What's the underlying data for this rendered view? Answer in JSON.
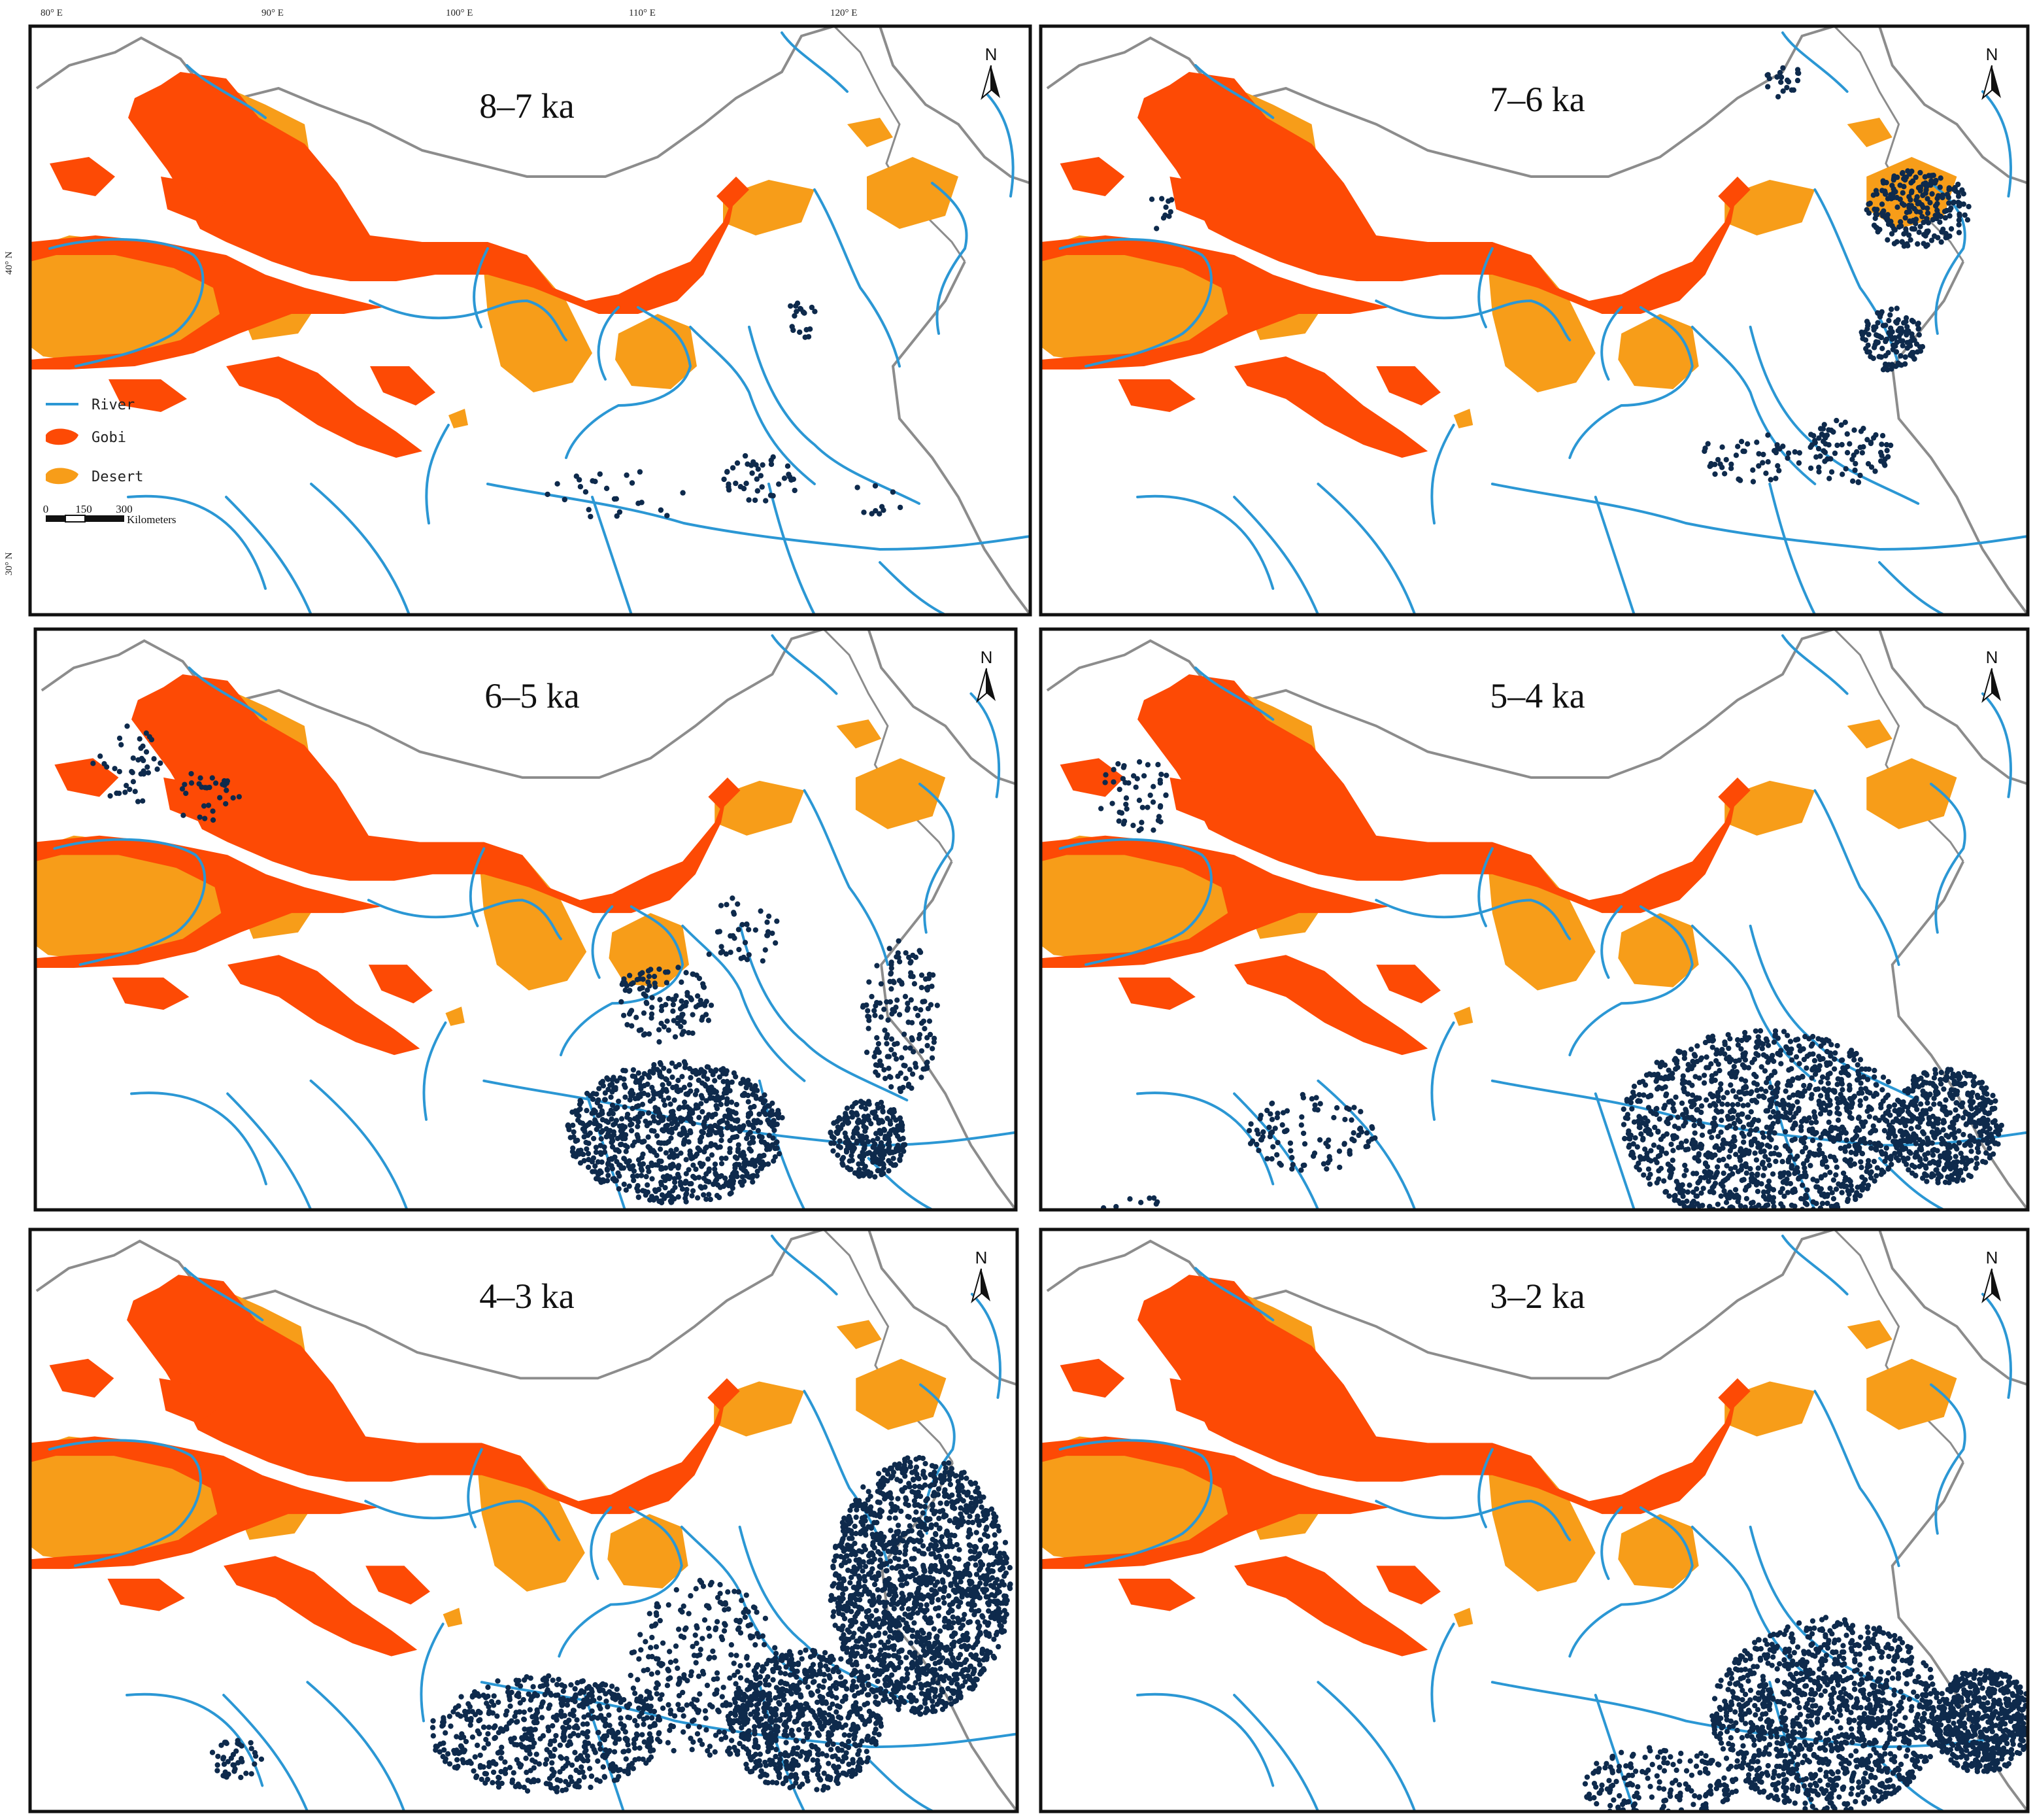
{
  "colors": {
    "gobi": "#fd4a05",
    "desert": "#f79d19",
    "river": "#2b97d4",
    "border": "#8c8c8c",
    "site": "#0e2a4c",
    "frame": "#111111"
  },
  "axes": {
    "lon_ticks": [
      "80° E",
      "90° E",
      "100° E",
      "110° E",
      "120° E"
    ],
    "lat_ticks": [
      "40° N",
      "30° N"
    ]
  },
  "legend": {
    "river": "River",
    "gobi": "Gobi",
    "desert": "Desert"
  },
  "scale_bar": {
    "ticks": [
      "0",
      "150",
      "300"
    ],
    "unit": "Kilometers"
  },
  "north_label": "N",
  "panels": [
    {
      "title": "8–7 ka",
      "density": "sparse"
    },
    {
      "title": "7–6 ka",
      "density": "moderate"
    },
    {
      "title": "6–5 ka",
      "density": "dense"
    },
    {
      "title": "5–4 ka",
      "density": "dense"
    },
    {
      "title": "4–3 ka",
      "density": "very-dense"
    },
    {
      "title": "3–2 ka",
      "density": "dense"
    }
  ]
}
